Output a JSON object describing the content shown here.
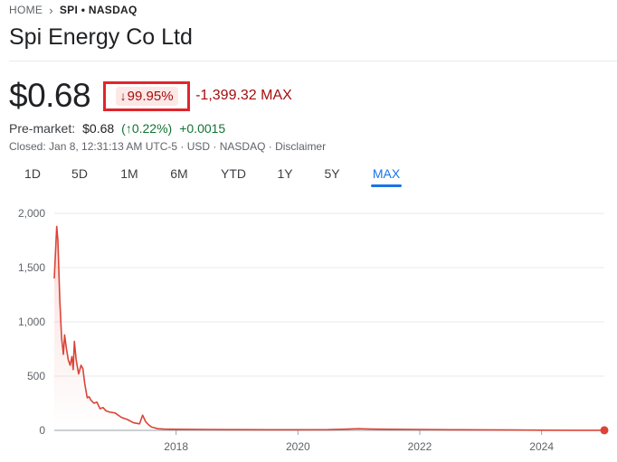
{
  "breadcrumb": {
    "home": "HOME",
    "ticker": "SPI • NASDAQ"
  },
  "title": "Spi Energy Co Ltd",
  "quote": {
    "price": "$0.68",
    "change_pct": "99.95%",
    "change_abs": "-1,399.32 MAX"
  },
  "premarket": {
    "label": "Pre-market:",
    "value": "$0.68",
    "change_pct": "0.22%",
    "change_abs": "+0.0015"
  },
  "closed_info": "Closed: Jan 8, 12:31:13 AM UTC-5 · USD · NASDAQ · Disclaimer",
  "tabs": [
    "1D",
    "5D",
    "1M",
    "6M",
    "YTD",
    "1Y",
    "5Y",
    "MAX"
  ],
  "active_tab": "MAX",
  "colors": {
    "line": "#db4437",
    "down": "#a50e0e",
    "up": "#137333",
    "accent": "#1a73e8"
  },
  "chart_data": {
    "type": "line",
    "title": "",
    "xlabel": "",
    "ylabel": "",
    "ylim": [
      0,
      2000
    ],
    "xlim": [
      2016.0,
      2025.03
    ],
    "y_ticks": [
      0,
      500,
      1000,
      1500,
      2000
    ],
    "y_tick_labels": [
      "0",
      "500",
      "1,000",
      "1,500",
      "2,000"
    ],
    "x_ticks": [
      2018,
      2020,
      2022,
      2024
    ],
    "x_tick_labels": [
      "2018",
      "2020",
      "2022",
      "2024"
    ],
    "grid": true,
    "series": [
      {
        "x": [
          2016.0,
          2016.04,
          2016.06,
          2016.09,
          2016.12,
          2016.15,
          2016.17,
          2016.2,
          2016.23,
          2016.26,
          2016.29,
          2016.31,
          2016.33,
          2016.36,
          2016.4,
          2016.44,
          2016.47,
          2016.5,
          2016.54,
          2016.57,
          2016.6,
          2016.65,
          2016.7,
          2016.75,
          2016.8,
          2016.85,
          2016.9,
          2017.0,
          2017.1,
          2017.2,
          2017.3,
          2017.4,
          2017.45,
          2017.5,
          2017.55,
          2017.6,
          2017.7,
          2017.8,
          2018.0,
          2018.5,
          2019.0,
          2019.5,
          2020.0,
          2020.5,
          2021.0,
          2021.2,
          2021.5,
          2022.0,
          2022.5,
          2023.0,
          2023.5,
          2024.0,
          2024.5,
          2025.03
        ],
        "y": [
          1400,
          1880,
          1750,
          1200,
          850,
          700,
          880,
          750,
          650,
          600,
          680,
          560,
          820,
          650,
          520,
          600,
          570,
          430,
          300,
          310,
          280,
          250,
          260,
          200,
          210,
          180,
          170,
          160,
          120,
          100,
          70,
          60,
          140,
          80,
          50,
          30,
          15,
          12,
          10,
          8,
          7,
          6,
          6,
          7,
          15,
          12,
          10,
          8,
          6,
          5,
          3,
          2,
          1,
          0.68
        ]
      }
    ]
  }
}
